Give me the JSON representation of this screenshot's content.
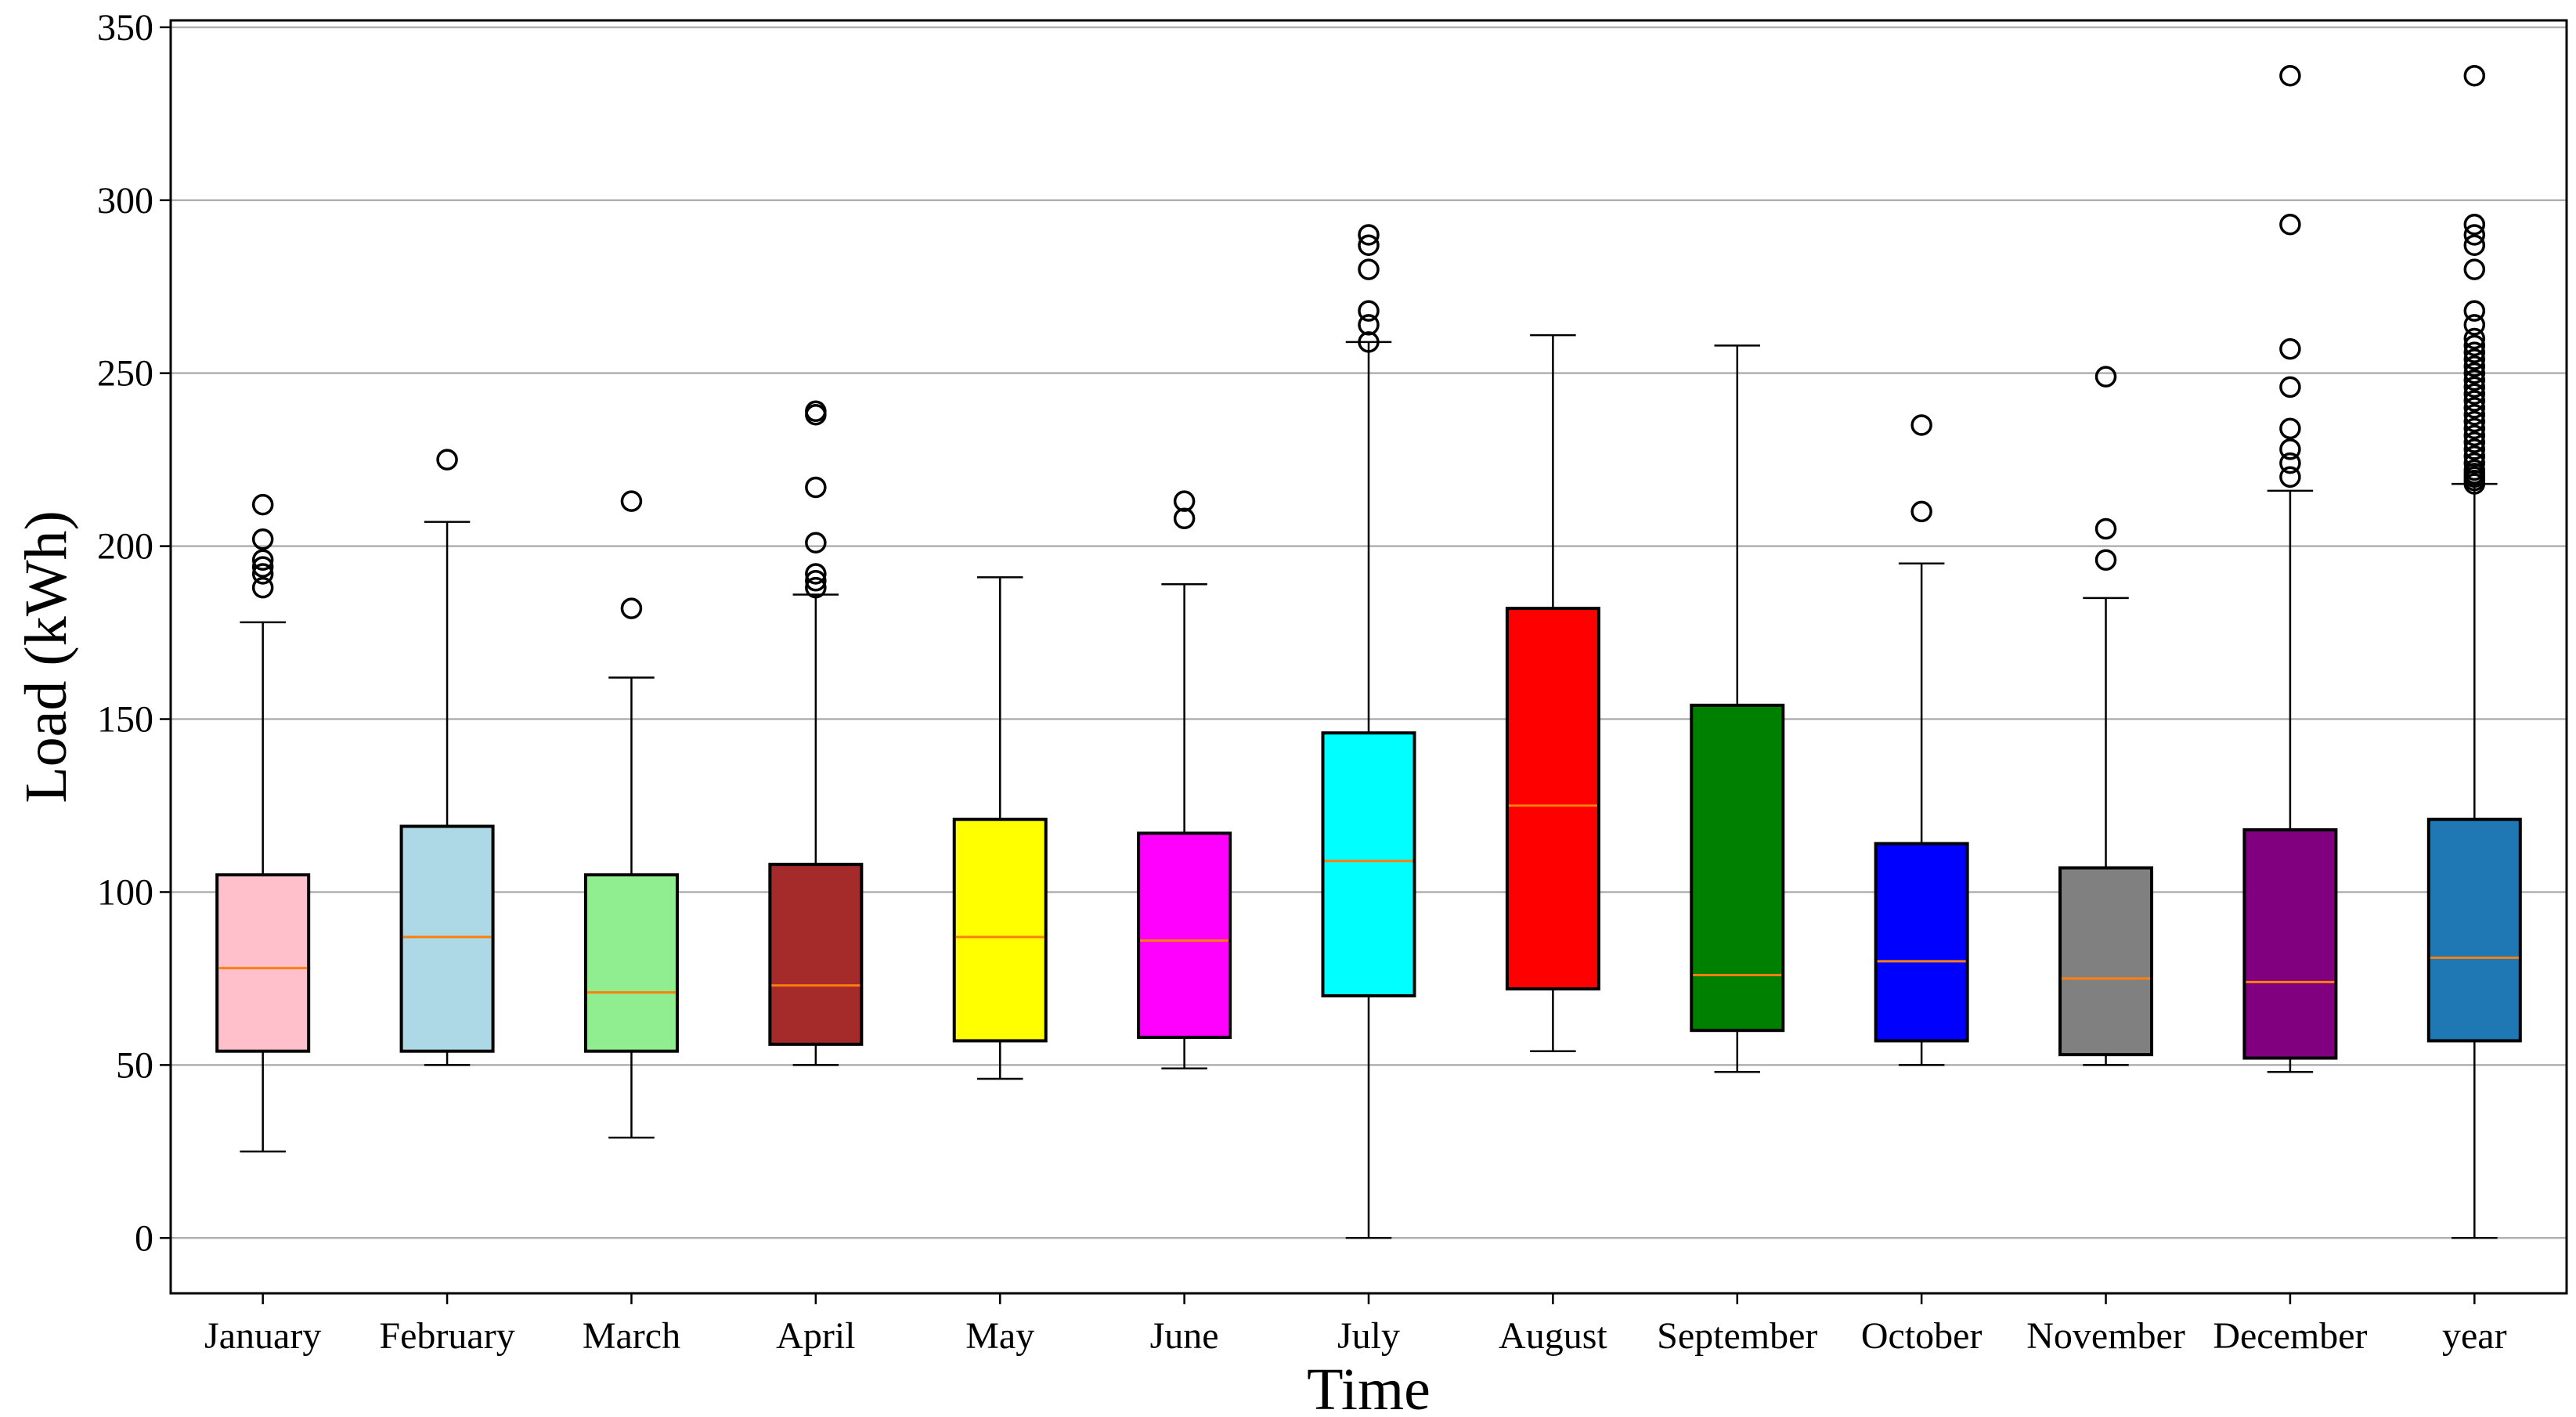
{
  "chart_data": {
    "type": "boxplot",
    "title": "",
    "xlabel": "Time",
    "ylabel": "Load (kWh)",
    "ylim": [
      -16,
      352
    ],
    "yticks": [
      0,
      50,
      100,
      150,
      200,
      250,
      300,
      350
    ],
    "grid": "horizontal",
    "median_color": "#ff7f0e",
    "categories": [
      "January",
      "February",
      "March",
      "April",
      "May",
      "June",
      "July",
      "August",
      "September",
      "October",
      "November",
      "December",
      "year"
    ],
    "boxes": [
      {
        "name": "January",
        "color": "#ffc0cb",
        "whisker_low": 25,
        "q1": 54,
        "median": 78,
        "q3": 105,
        "whisker_high": 178,
        "outliers": [
          188,
          192,
          194,
          196,
          202,
          212
        ]
      },
      {
        "name": "February",
        "color": "#add8e6",
        "whisker_low": 50,
        "q1": 54,
        "median": 87,
        "q3": 119,
        "whisker_high": 207,
        "outliers": [
          225
        ]
      },
      {
        "name": "March",
        "color": "#90ee90",
        "whisker_low": 29,
        "q1": 54,
        "median": 71,
        "q3": 105,
        "whisker_high": 162,
        "outliers": [
          182,
          213
        ]
      },
      {
        "name": "April",
        "color": "#a52a2a",
        "whisker_low": 50,
        "q1": 56,
        "median": 73,
        "q3": 108,
        "whisker_high": 186,
        "outliers": [
          188,
          190,
          192,
          201,
          217,
          238,
          239
        ]
      },
      {
        "name": "May",
        "color": "#ffff00",
        "whisker_low": 46,
        "q1": 57,
        "median": 87,
        "q3": 121,
        "whisker_high": 191,
        "outliers": []
      },
      {
        "name": "June",
        "color": "#ff00ff",
        "whisker_low": 49,
        "q1": 58,
        "median": 86,
        "q3": 117,
        "whisker_high": 189,
        "outliers": [
          208,
          213
        ]
      },
      {
        "name": "July",
        "color": "#00ffff",
        "whisker_low": 0,
        "q1": 70,
        "median": 109,
        "q3": 146,
        "whisker_high": 259,
        "outliers": [
          259,
          264,
          268,
          280,
          287,
          290
        ]
      },
      {
        "name": "August",
        "color": "#ff0000",
        "whisker_low": 54,
        "q1": 72,
        "median": 125,
        "q3": 182,
        "whisker_high": 261,
        "outliers": []
      },
      {
        "name": "September",
        "color": "#008000",
        "whisker_low": 48,
        "q1": 60,
        "median": 76,
        "q3": 154,
        "whisker_high": 258,
        "outliers": []
      },
      {
        "name": "October",
        "color": "#0000ff",
        "whisker_low": 50,
        "q1": 57,
        "median": 80,
        "q3": 114,
        "whisker_high": 195,
        "outliers": [
          210,
          235
        ]
      },
      {
        "name": "November",
        "color": "#808080",
        "whisker_low": 50,
        "q1": 53,
        "median": 75,
        "q3": 107,
        "whisker_high": 185,
        "outliers": [
          196,
          205,
          249
        ]
      },
      {
        "name": "December",
        "color": "#800080",
        "whisker_low": 48,
        "q1": 52,
        "median": 74,
        "q3": 118,
        "whisker_high": 216,
        "outliers": [
          220,
          224,
          228,
          234,
          246,
          257,
          293,
          336
        ]
      },
      {
        "name": "year",
        "color": "#1f77b4",
        "whisker_low": 0,
        "q1": 57,
        "median": 81,
        "q3": 121,
        "whisker_high": 218,
        "outliers": [
          218,
          219,
          220,
          221,
          222,
          224,
          226,
          228,
          230,
          232,
          234,
          236,
          238,
          240,
          242,
          244,
          246,
          248,
          250,
          252,
          254,
          256,
          258,
          260,
          264,
          268,
          280,
          287,
          290,
          293,
          336
        ]
      }
    ]
  }
}
